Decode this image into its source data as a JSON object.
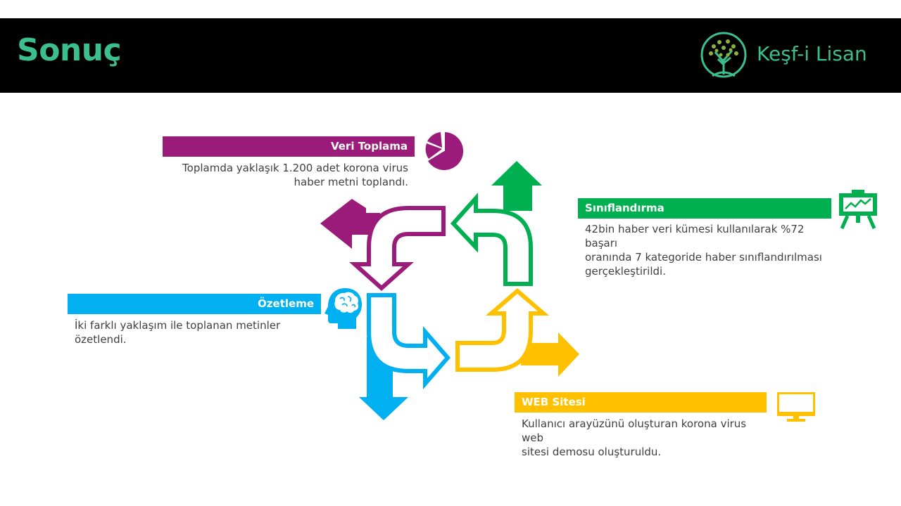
{
  "header": {
    "title": "Sonuç",
    "logo_text": "Keşf-i Lisan"
  },
  "colors": {
    "purple": "#9b1b7a",
    "green": "#00b050",
    "blue": "#00b0f0",
    "yellow": "#ffc000",
    "accent": "#3cbf8f"
  },
  "sections": {
    "veri": {
      "label": "Veri Toplama",
      "line1": "Toplamda yaklaşık 1.200 adet korona virus",
      "line2": "haber metni toplandı.",
      "icon": "pie-chart-icon"
    },
    "sinif": {
      "label": "Sınıflandırma",
      "line1": "42bin haber veri kümesi kullanılarak %72 başarı",
      "line2": "oranında 7 kategoride haber sınıflandırılması",
      "line3": "gerçekleştirildi.",
      "icon": "presentation-chart-icon"
    },
    "ozet": {
      "label": "Özetleme",
      "line1": "İki farklı yaklaşım ile toplanan metinler",
      "line2": "özetlendi.",
      "icon": "brain-head-icon"
    },
    "web": {
      "label": "WEB Sitesi",
      "line1": "Kullanıcı arayüzünü oluşturan korona virus web",
      "line2": "sitesi demosu oluşturuldu.",
      "icon": "monitor-icon"
    }
  }
}
